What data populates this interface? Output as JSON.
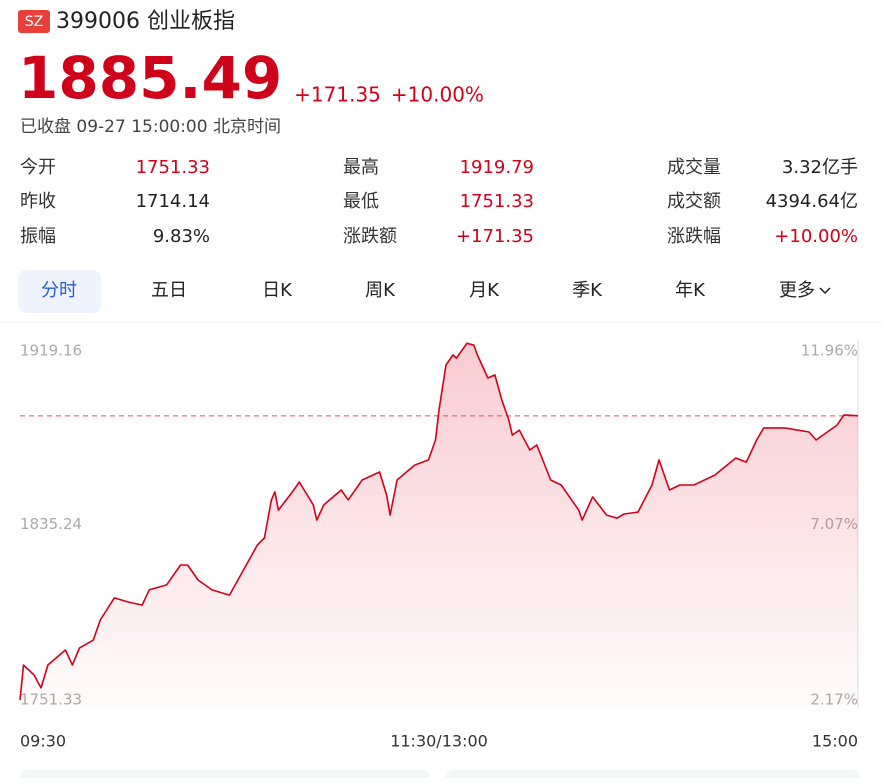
{
  "header": {
    "badge": "SZ",
    "title": "399006 创业板指"
  },
  "quote": {
    "price": "1885.49",
    "change": "+171.35",
    "change_pct": "+10.00%",
    "status": "已收盘 09-27 15:00:00 北京时间",
    "color": "#d0021b"
  },
  "stats": [
    [
      {
        "label": "今开",
        "value": "1751.33",
        "color": "#d0021b"
      },
      {
        "label": "最高",
        "value": "1919.79",
        "color": "#d0021b"
      },
      {
        "label": "成交量",
        "value": "3.32亿手",
        "color": "#222222"
      }
    ],
    [
      {
        "label": "昨收",
        "value": "1714.14",
        "color": "#222222"
      },
      {
        "label": "最低",
        "value": "1751.33",
        "color": "#d0021b"
      },
      {
        "label": "成交额",
        "value": "4394.64亿",
        "color": "#222222"
      }
    ],
    [
      {
        "label": "振幅",
        "value": "9.83%",
        "color": "#222222"
      },
      {
        "label": "涨跌额",
        "value": "+171.35",
        "color": "#d0021b"
      },
      {
        "label": "涨跌幅",
        "value": "+10.00%",
        "color": "#d0021b"
      }
    ]
  ],
  "tabs": {
    "items": [
      "分时",
      "五日",
      "日K",
      "周K",
      "月K",
      "季K",
      "年K",
      "更多"
    ],
    "active": 0
  },
  "chart_data": {
    "type": "line",
    "color": "#d0021b",
    "reference": 1885.49,
    "x": [
      0,
      1,
      4,
      6,
      8,
      13,
      15,
      17,
      21,
      23,
      27,
      31,
      35,
      37,
      42,
      46,
      48,
      51,
      55,
      60,
      64,
      68,
      70,
      72,
      73,
      74,
      78,
      80,
      84,
      85,
      87,
      92,
      94,
      98,
      103,
      105,
      106,
      108,
      113,
      117,
      119,
      120,
      122,
      124,
      125,
      128,
      130,
      131,
      134,
      136,
      138,
      140,
      141,
      143,
      146,
      148,
      152,
      155,
      160,
      161,
      164,
      168,
      171,
      173,
      177,
      181,
      183,
      186,
      189,
      193,
      199,
      205,
      208,
      211,
      213,
      219,
      226,
      228,
      234,
      236,
      240
    ],
    "values": [
      1754.1,
      1770.3,
      1765.7,
      1759.7,
      1770.3,
      1777.2,
      1770.3,
      1778.1,
      1781.8,
      1791.1,
      1801.3,
      1799.4,
      1798.0,
      1805.0,
      1807.3,
      1816.5,
      1816.5,
      1809.6,
      1805.0,
      1802.6,
      1814.2,
      1825.8,
      1829.0,
      1846.6,
      1850.3,
      1841.9,
      1850.3,
      1854.9,
      1844.3,
      1837.3,
      1844.3,
      1851.2,
      1846.6,
      1855.8,
      1859.5,
      1848.9,
      1839.6,
      1855.8,
      1862.7,
      1865.1,
      1874.3,
      1888.2,
      1909.0,
      1913.6,
      1912.2,
      1919.0,
      1918.2,
      1913.6,
      1903.0,
      1904.4,
      1892.8,
      1883.6,
      1876.6,
      1878.9,
      1869.7,
      1872.0,
      1855.8,
      1853.5,
      1841.9,
      1837.3,
      1848.0,
      1839.6,
      1838.2,
      1840.1,
      1841.0,
      1853.5,
      1865.1,
      1851.2,
      1853.5,
      1853.5,
      1858.1,
      1866.0,
      1864.1,
      1874.3,
      1879.9,
      1879.9,
      1878.0,
      1874.3,
      1881.2,
      1885.9,
      1885.49
    ],
    "xlim": [
      0,
      240
    ],
    "xticks": [
      {
        "value": 0,
        "label": "09:30"
      },
      {
        "value": 120,
        "label": "11:30/13:00"
      },
      {
        "value": 240,
        "label": "15:00"
      }
    ],
    "ylim": [
      1751.33,
      1919.16
    ],
    "yticks": [
      1919.16,
      1835.24,
      1751.33
    ],
    "y2lim": [
      2.17,
      11.96
    ],
    "y2ticks": [
      {
        "value": 11.96,
        "label": "11.96%"
      },
      {
        "value": 7.07,
        "label": "7.07%"
      },
      {
        "value": 2.17,
        "label": "2.17%"
      }
    ]
  }
}
